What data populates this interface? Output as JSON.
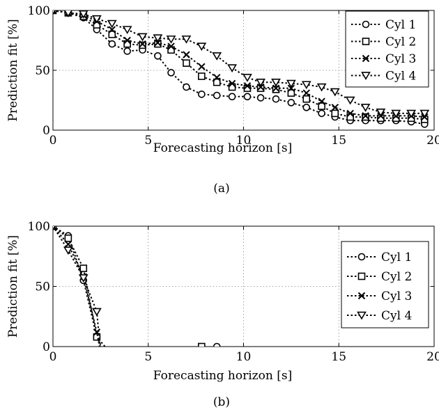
{
  "chart_data": [
    {
      "type": "line",
      "caption": "(a)",
      "xlabel": "Forecasting horizon [s]",
      "ylabel": "Prediction fit [%]",
      "xlim": [
        0,
        20
      ],
      "ylim": [
        0,
        100
      ],
      "xticks": [
        "0",
        "5",
        "10",
        "15",
        "20"
      ],
      "yticks": [
        "0",
        "50",
        "100"
      ],
      "grid": true,
      "legend_position": "top-right",
      "series": [
        {
          "name": "Cyl 1",
          "marker": "circle",
          "x": [
            0,
            0.8,
            1.6,
            2.3,
            3.1,
            3.9,
            4.7,
            5.5,
            6.2,
            7,
            7.8,
            8.6,
            9.4,
            10.2,
            10.9,
            11.7,
            12.5,
            13.3,
            14.1,
            14.8,
            15.6,
            16.4,
            17.2,
            18,
            18.8,
            19.5
          ],
          "y": [
            100,
            98,
            94,
            84,
            72,
            66,
            67,
            62,
            48,
            36,
            30,
            29,
            28,
            28,
            27,
            26,
            23,
            19,
            14,
            11,
            8,
            8,
            8,
            8,
            7,
            5
          ]
        },
        {
          "name": "Cyl 2",
          "marker": "square",
          "x": [
            0,
            0.8,
            1.6,
            2.3,
            3.1,
            3.9,
            4.7,
            5.5,
            6.2,
            7,
            7.8,
            8.6,
            9.4,
            10.2,
            10.9,
            11.7,
            12.5,
            13.3,
            14.1,
            14.8,
            15.6,
            16.4,
            17.2,
            18,
            18.8,
            19.5
          ],
          "y": [
            100,
            98,
            95,
            88,
            80,
            72,
            71,
            72,
            67,
            56,
            45,
            40,
            36,
            35,
            35,
            34,
            31,
            26,
            20,
            14,
            11,
            11,
            10,
            10,
            10,
            9
          ]
        },
        {
          "name": "Cyl 3",
          "marker": "x",
          "x": [
            0,
            0.8,
            1.6,
            2.3,
            3.1,
            3.9,
            4.7,
            5.5,
            6.2,
            7,
            7.8,
            8.6,
            9.4,
            10.2,
            10.9,
            11.7,
            12.5,
            13.3,
            14.1,
            14.8,
            15.6,
            16.4,
            17.2,
            18,
            18.8,
            19.5
          ],
          "y": [
            100,
            98,
            96,
            91,
            84,
            75,
            72,
            73,
            70,
            63,
            53,
            44,
            39,
            37,
            36,
            35,
            35,
            31,
            24,
            19,
            14,
            12,
            12,
            12,
            12,
            11
          ]
        },
        {
          "name": "Cyl 4",
          "marker": "triangle-down",
          "x": [
            0,
            0.8,
            1.6,
            2.3,
            3.1,
            3.9,
            4.7,
            5.5,
            6.2,
            7,
            7.8,
            8.6,
            9.4,
            10.2,
            10.9,
            11.7,
            12.5,
            13.3,
            14.1,
            14.8,
            15.6,
            16.4,
            17.2,
            18,
            18.8,
            19.5
          ],
          "y": [
            100,
            98,
            97,
            93,
            89,
            84,
            78,
            77,
            76,
            76,
            70,
            62,
            52,
            44,
            40,
            40,
            39,
            38,
            36,
            32,
            25,
            19,
            15,
            14,
            14,
            14
          ]
        }
      ]
    },
    {
      "type": "line",
      "caption": "(b)",
      "xlabel": "Forecasting horizon [s]",
      "ylabel": "Prediction fit [%]",
      "xlim": [
        0,
        20
      ],
      "ylim": [
        0,
        100
      ],
      "xticks": [
        "0",
        "5",
        "10",
        "15",
        "20"
      ],
      "yticks": [
        "0",
        "50",
        "100"
      ],
      "grid": true,
      "legend_position": "right",
      "series": [
        {
          "name": "Cyl 1",
          "marker": "circle",
          "x": [
            0,
            0.8,
            1.6,
            2.3,
            3.0
          ],
          "y": [
            100,
            92,
            55,
            8,
            -5
          ],
          "isolated": [
            {
              "x": 8.6,
              "y": 0
            }
          ]
        },
        {
          "name": "Cyl 2",
          "marker": "square",
          "x": [
            0,
            0.8,
            1.6,
            2.3,
            2.7
          ],
          "y": [
            100,
            90,
            65,
            8,
            -5
          ],
          "isolated": [
            {
              "x": 7.8,
              "y": 0
            }
          ]
        },
        {
          "name": "Cyl 3",
          "marker": "x",
          "x": [
            0,
            0.8,
            1.6,
            2.3,
            2.5
          ],
          "y": [
            100,
            85,
            58,
            12,
            -5
          ]
        },
        {
          "name": "Cyl 4",
          "marker": "triangle-down",
          "x": [
            0,
            0.8,
            1.6,
            2.3,
            2.5
          ],
          "y": [
            100,
            80,
            57,
            29,
            -5
          ]
        }
      ]
    }
  ]
}
